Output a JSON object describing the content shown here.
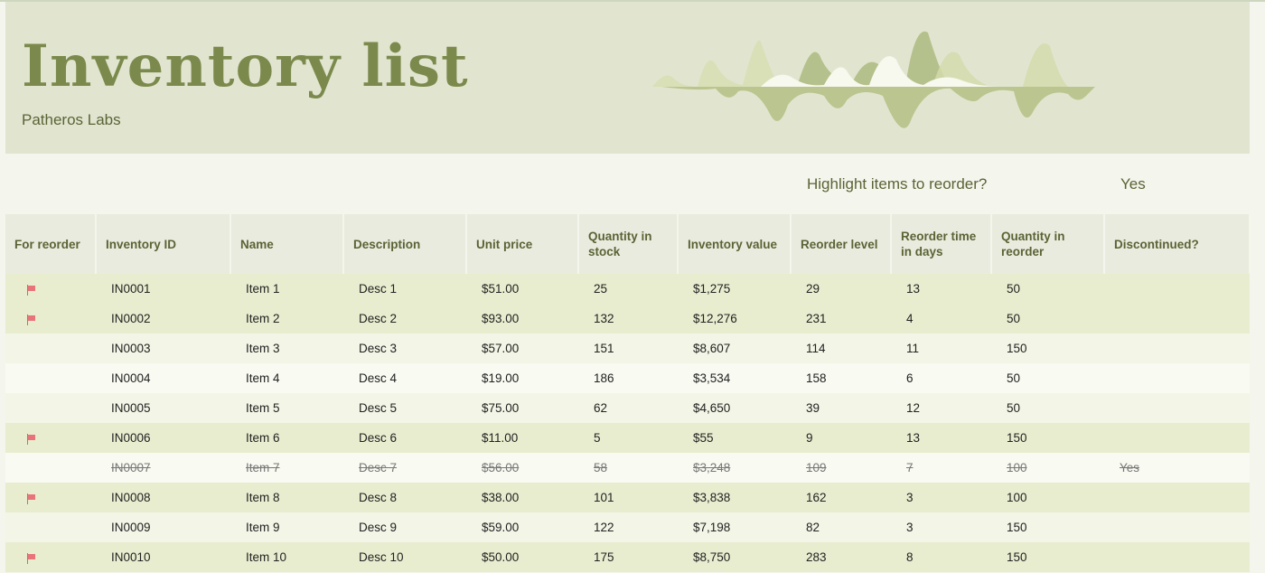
{
  "header": {
    "title": "Inventory list",
    "subtitle": "Patheros Labs"
  },
  "highlight": {
    "label": "Highlight items to reorder?",
    "value": "Yes"
  },
  "colors": {
    "banner": "#e1e5d0",
    "title": "#7b8a4c",
    "flag": "#e8747a",
    "reorder_row": "#e9edcf"
  },
  "table": {
    "columns": [
      "For reorder",
      "Inventory ID",
      "Name",
      "Description",
      "Unit price",
      "Quantity in stock",
      "Inventory value",
      "Reorder level",
      "Reorder time in days",
      "Quantity in reorder",
      "Discontinued?"
    ],
    "rows": [
      {
        "flag": true,
        "id": "IN0001",
        "name": "Item 1",
        "desc": "Desc 1",
        "price": "$51.00",
        "qty": "25",
        "value": "$1,275",
        "level": "29",
        "days": "13",
        "reorder": "50",
        "disc": ""
      },
      {
        "flag": true,
        "id": "IN0002",
        "name": "Item 2",
        "desc": "Desc 2",
        "price": "$93.00",
        "qty": "132",
        "value": "$12,276",
        "level": "231",
        "days": "4",
        "reorder": "50",
        "disc": ""
      },
      {
        "flag": false,
        "id": "IN0003",
        "name": "Item 3",
        "desc": "Desc 3",
        "price": "$57.00",
        "qty": "151",
        "value": "$8,607",
        "level": "114",
        "days": "11",
        "reorder": "150",
        "disc": ""
      },
      {
        "flag": false,
        "id": "IN0004",
        "name": "Item 4",
        "desc": "Desc 4",
        "price": "$19.00",
        "qty": "186",
        "value": "$3,534",
        "level": "158",
        "days": "6",
        "reorder": "50",
        "disc": ""
      },
      {
        "flag": false,
        "id": "IN0005",
        "name": "Item 5",
        "desc": "Desc 5",
        "price": "$75.00",
        "qty": "62",
        "value": "$4,650",
        "level": "39",
        "days": "12",
        "reorder": "50",
        "disc": ""
      },
      {
        "flag": true,
        "id": "IN0006",
        "name": "Item 6",
        "desc": "Desc 6",
        "price": "$11.00",
        "qty": "5",
        "value": "$55",
        "level": "9",
        "days": "13",
        "reorder": "150",
        "disc": ""
      },
      {
        "flag": false,
        "id": "IN0007",
        "name": "Item 7",
        "desc": "Desc 7",
        "price": "$56.00",
        "qty": "58",
        "value": "$3,248",
        "level": "109",
        "days": "7",
        "reorder": "100",
        "disc": "Yes"
      },
      {
        "flag": true,
        "id": "IN0008",
        "name": "Item 8",
        "desc": "Desc 8",
        "price": "$38.00",
        "qty": "101",
        "value": "$3,838",
        "level": "162",
        "days": "3",
        "reorder": "100",
        "disc": ""
      },
      {
        "flag": false,
        "id": "IN0009",
        "name": "Item 9",
        "desc": "Desc 9",
        "price": "$59.00",
        "qty": "122",
        "value": "$7,198",
        "level": "82",
        "days": "3",
        "reorder": "150",
        "disc": ""
      },
      {
        "flag": true,
        "id": "IN0010",
        "name": "Item 10",
        "desc": "Desc 10",
        "price": "$50.00",
        "qty": "175",
        "value": "$8,750",
        "level": "283",
        "days": "8",
        "reorder": "150",
        "disc": ""
      }
    ]
  }
}
